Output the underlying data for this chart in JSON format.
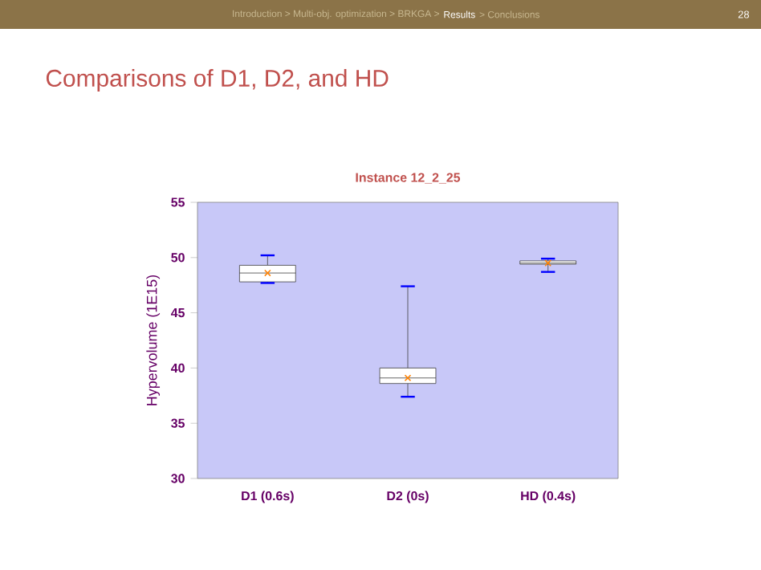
{
  "chart_data": {
    "type": "box",
    "title": "Comparisons of D1, D2, and HD",
    "subtitle": "Instance 12_2_25",
    "ylabel": "Hypervolume (1E15)",
    "categories": [
      "D1 (0.6s)",
      "D2 (0s)",
      "HD (0.4s)"
    ],
    "series": [
      {
        "color": "#ffffff",
        "boxes": [
          {
            "low": 47.7,
            "q1": 47.8,
            "median": 48.6,
            "q3": 49.3,
            "high": 50.2,
            "mean": 48.6
          },
          {
            "low": 37.4,
            "q1": 38.6,
            "median": 39.1,
            "q3": 40.0,
            "high": 47.4,
            "mean": 39.1
          },
          {
            "low": 48.7,
            "q1": 49.4,
            "median": 49.5,
            "q3": 49.7,
            "high": 49.9,
            "mean": 49.5
          }
        ]
      }
    ],
    "ylim": [
      30,
      55
    ],
    "yticks": [
      30,
      35,
      40,
      45,
      50,
      55
    ],
    "annotations": [
      "Introduction > Multi-obj. optimization > BRKGA >",
      "Results",
      "> Conclusions",
      "28"
    ]
  }
}
